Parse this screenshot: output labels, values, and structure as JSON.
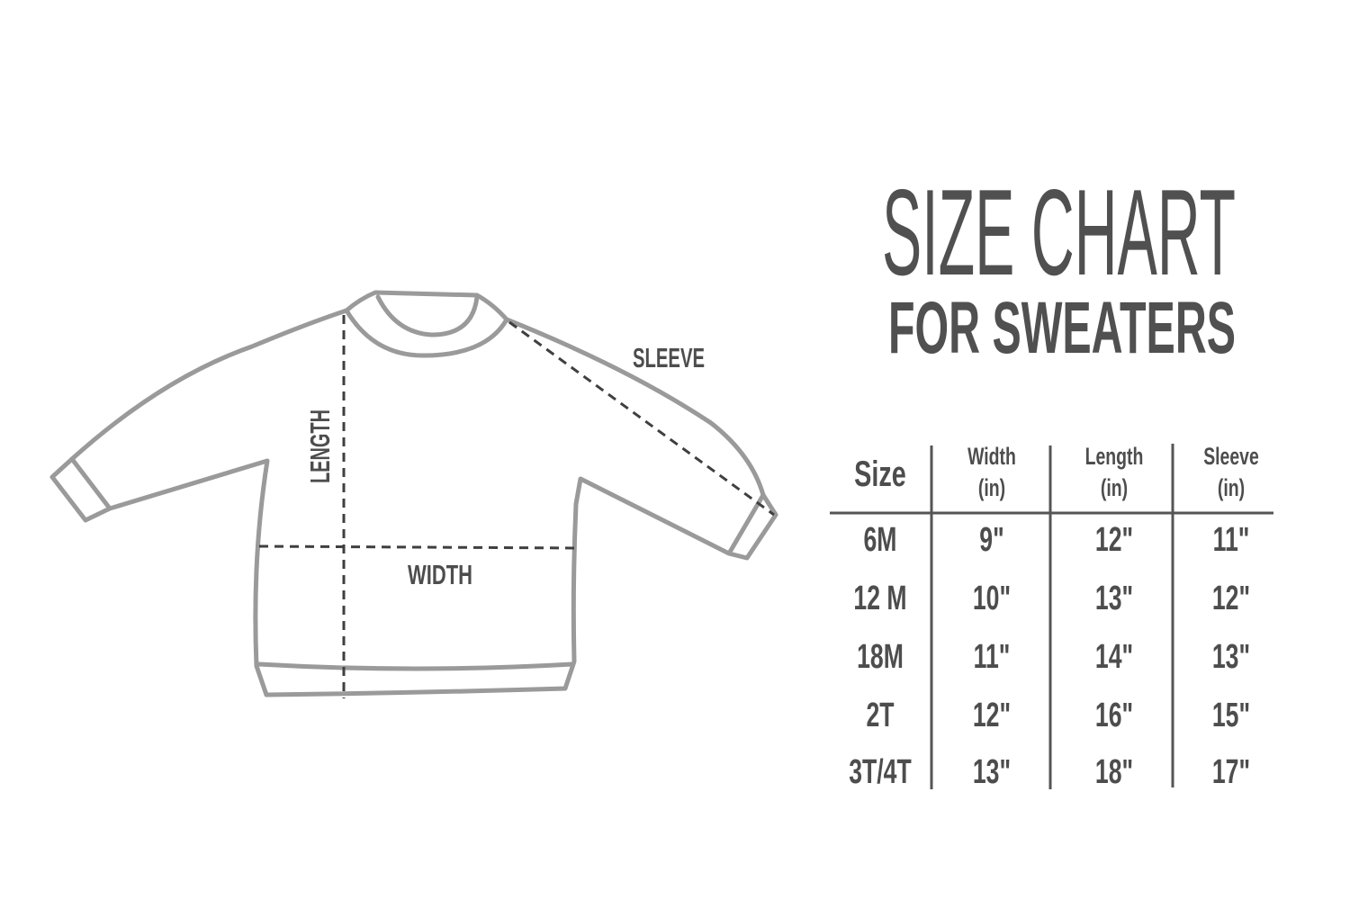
{
  "title": {
    "line1": "SIZE CHART",
    "line2": "FOR SWEATERS"
  },
  "diagram": {
    "length_label": "LENGTH",
    "width_label": "WIDTH",
    "sleeve_label": "SLEEVE"
  },
  "table": {
    "headers": [
      {
        "line1": "Size",
        "line2": ""
      },
      {
        "line1": "Width",
        "line2": "(in)"
      },
      {
        "line1": "Length",
        "line2": "(in)"
      },
      {
        "line1": "Sleeve",
        "line2": "(in)"
      }
    ],
    "rows": [
      [
        "6M",
        "9\"",
        "12\"",
        "11\""
      ],
      [
        "12 M",
        "10\"",
        "13\"",
        "12\""
      ],
      [
        "18M",
        "11\"",
        "14\"",
        "13\""
      ],
      [
        "2T",
        "12\"",
        "16\"",
        "15\""
      ],
      [
        "3T/4T",
        "13\"",
        "18\"",
        "17\""
      ]
    ]
  },
  "colors": {
    "text": "#4d4d4d",
    "outline": "#9a9a9a"
  }
}
